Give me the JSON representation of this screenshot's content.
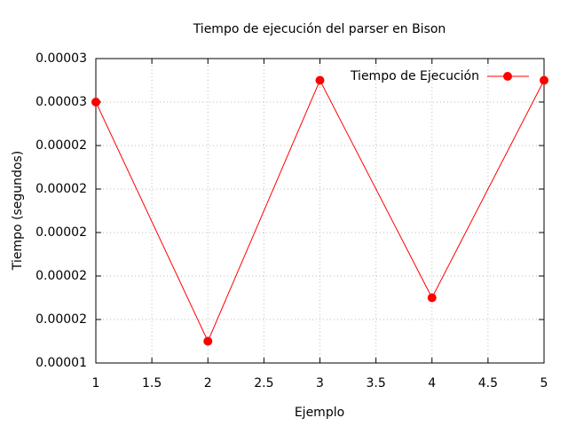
{
  "chart_data": {
    "type": "line",
    "title": "Tiempo de ejecución del parser en Bison",
    "x_label": "Ejemplo",
    "y_label": "Tiempo (segundos)",
    "x": [
      1,
      2,
      3,
      4,
      5
    ],
    "series": [
      {
        "name": "Tiempo de Ejecución",
        "color": "#ff0000",
        "values": [
          2.6e-05,
          1.5e-05,
          2.7e-05,
          1.7e-05,
          2.7e-05
        ]
      }
    ],
    "xlim": [
      1,
      5
    ],
    "xticks": [
      1,
      1.5,
      2,
      2.5,
      3,
      3.5,
      4,
      4.5,
      5
    ],
    "ylim": [
      1.4e-05,
      2.8e-05
    ],
    "yticks": [
      {
        "value": 1.4e-05,
        "label": "0.00001"
      },
      {
        "value": 1.6e-05,
        "label": "0.00002"
      },
      {
        "value": 1.8e-05,
        "label": "0.00002"
      },
      {
        "value": 2e-05,
        "label": "0.00002"
      },
      {
        "value": 2.2e-05,
        "label": "0.00002"
      },
      {
        "value": 2.4e-05,
        "label": "0.00002"
      },
      {
        "value": 2.6e-05,
        "label": "0.00003"
      },
      {
        "value": 2.8e-05,
        "label": "0.00003"
      }
    ],
    "grid": true,
    "legend": "top-right"
  }
}
